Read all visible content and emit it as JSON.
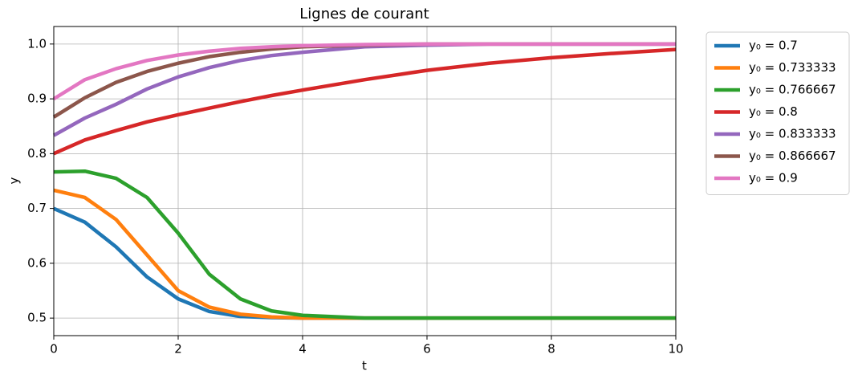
{
  "chart_data": {
    "type": "line",
    "title": "Lignes de courant",
    "x_label": "t",
    "y_label": "y",
    "x": [
      0,
      0.5,
      1,
      1.5,
      2,
      2.5,
      3,
      3.5,
      4,
      5,
      6,
      7,
      8,
      9,
      10
    ],
    "series": [
      {
        "name": "y₀ = 0.7",
        "color": "#1f77b4",
        "values": [
          0.7,
          0.675,
          0.63,
          0.575,
          0.535,
          0.512,
          0.503,
          0.501,
          0.5,
          0.5,
          0.5,
          0.5,
          0.5,
          0.5,
          0.5
        ]
      },
      {
        "name": "y₀ = 0.733333",
        "color": "#ff7f0e",
        "values": [
          0.7333,
          0.72,
          0.68,
          0.615,
          0.55,
          0.52,
          0.507,
          0.502,
          0.5,
          0.5,
          0.5,
          0.5,
          0.5,
          0.5,
          0.5
        ]
      },
      {
        "name": "y₀ = 0.766667",
        "color": "#2ca02c",
        "values": [
          0.7667,
          0.768,
          0.755,
          0.72,
          0.655,
          0.58,
          0.535,
          0.513,
          0.505,
          0.5,
          0.5,
          0.5,
          0.5,
          0.5,
          0.5
        ]
      },
      {
        "name": "y₀ = 0.8",
        "color": "#d62728",
        "values": [
          0.8,
          0.825,
          0.842,
          0.858,
          0.871,
          0.883,
          0.895,
          0.906,
          0.916,
          0.935,
          0.952,
          0.965,
          0.975,
          0.983,
          0.99
        ]
      },
      {
        "name": "y₀ = 0.833333",
        "color": "#9467bd",
        "values": [
          0.8333,
          0.865,
          0.89,
          0.918,
          0.94,
          0.957,
          0.97,
          0.979,
          0.985,
          0.995,
          0.998,
          1.0,
          1.0,
          1.0,
          1.0
        ]
      },
      {
        "name": "y₀ = 0.866667",
        "color": "#8c564b",
        "values": [
          0.8667,
          0.902,
          0.93,
          0.95,
          0.965,
          0.977,
          0.985,
          0.991,
          0.995,
          0.998,
          1.0,
          1.0,
          1.0,
          1.0,
          1.0
        ]
      },
      {
        "name": "y₀ = 0.9",
        "color": "#e377c2",
        "values": [
          0.9,
          0.935,
          0.955,
          0.97,
          0.98,
          0.987,
          0.992,
          0.995,
          0.997,
          0.999,
          1.0,
          1.0,
          1.0,
          1.0,
          1.0
        ]
      }
    ],
    "xlim": [
      0,
      10
    ],
    "xticks": [
      0,
      2,
      4,
      6,
      8,
      10
    ],
    "ylim": [
      0.468,
      1.032
    ],
    "yticks": [
      0.5,
      0.6,
      0.7,
      0.8,
      0.9,
      {
        "value": 1,
        "label": "1.0"
      }
    ],
    "grid": true,
    "legend": "outside-right"
  }
}
